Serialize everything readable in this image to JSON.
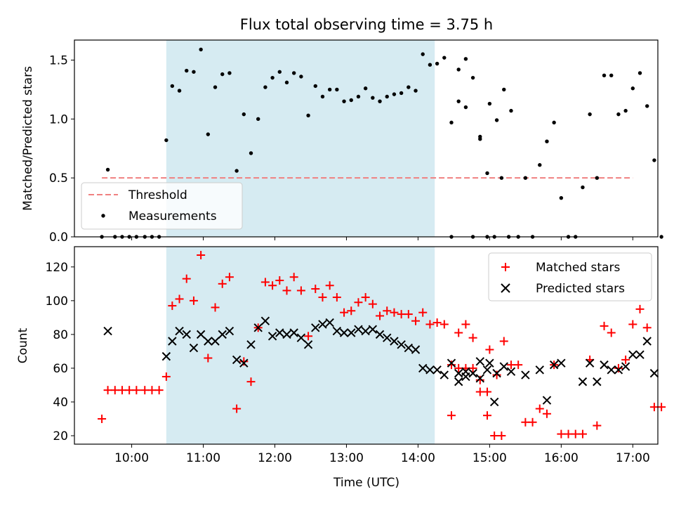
{
  "chart_data": [
    {
      "type": "scatter",
      "title": "Flux total observing time = 3.75 h",
      "xlabel": "",
      "ylabel": "Matched/Predicted stars",
      "xlim": [
        "09:12",
        "17:21"
      ],
      "ylim": [
        0,
        1.67
      ],
      "yticks": [
        0.0,
        0.5,
        1.0,
        1.5
      ],
      "ytick_labels": [
        "0.0",
        "0.5",
        "1.0",
        "1.5"
      ],
      "shaded_span": {
        "start": "10:29",
        "end": "14:14",
        "color": "#add8e6"
      },
      "legend": {
        "position": "lower-left",
        "entries": [
          "Threshold",
          "Measurements"
        ]
      },
      "threshold": {
        "name": "Threshold",
        "value": 0.5,
        "x_start": "09:35",
        "x_end": "17:00",
        "color": "#f08080",
        "style": "dashed"
      },
      "series": [
        {
          "name": "Measurements",
          "color": "#000000",
          "marker": "dot",
          "points": [
            [
              "09:35",
              0.0
            ],
            [
              "09:40",
              0.57
            ],
            [
              "09:46",
              0.0
            ],
            [
              "09:52",
              0.0
            ],
            [
              "09:58",
              0.0
            ],
            [
              "10:04",
              0.0
            ],
            [
              "10:11",
              0.0
            ],
            [
              "10:17",
              0.0
            ],
            [
              "10:23",
              0.0
            ],
            [
              "10:29",
              0.82
            ],
            [
              "10:34",
              1.28
            ],
            [
              "10:40",
              1.24
            ],
            [
              "10:46",
              1.41
            ],
            [
              "10:52",
              1.4
            ],
            [
              "10:58",
              1.59
            ],
            [
              "11:04",
              0.87
            ],
            [
              "11:10",
              1.27
            ],
            [
              "11:16",
              1.38
            ],
            [
              "11:22",
              1.39
            ],
            [
              "11:28",
              0.56
            ],
            [
              "11:34",
              1.04
            ],
            [
              "11:40",
              0.71
            ],
            [
              "11:46",
              1.0
            ],
            [
              "11:52",
              1.27
            ],
            [
              "11:58",
              1.35
            ],
            [
              "12:04",
              1.4
            ],
            [
              "12:10",
              1.31
            ],
            [
              "12:16",
              1.39
            ],
            [
              "12:22",
              1.36
            ],
            [
              "12:28",
              1.03
            ],
            [
              "12:34",
              1.28
            ],
            [
              "12:40",
              1.19
            ],
            [
              "12:46",
              1.25
            ],
            [
              "12:52",
              1.25
            ],
            [
              "12:58",
              1.15
            ],
            [
              "13:04",
              1.16
            ],
            [
              "13:10",
              1.19
            ],
            [
              "13:16",
              1.26
            ],
            [
              "13:22",
              1.18
            ],
            [
              "13:28",
              1.15
            ],
            [
              "13:34",
              1.19
            ],
            [
              "13:40",
              1.21
            ],
            [
              "13:46",
              1.22
            ],
            [
              "13:52",
              1.27
            ],
            [
              "13:58",
              1.24
            ],
            [
              "14:04",
              1.55
            ],
            [
              "14:10",
              1.46
            ],
            [
              "14:16",
              1.47
            ],
            [
              "14:22",
              1.52
            ],
            [
              "14:28",
              0.97
            ],
            [
              "14:34",
              1.42
            ],
            [
              "14:40",
              1.51
            ],
            [
              "14:46",
              1.35
            ],
            [
              "14:52",
              0.83
            ],
            [
              "14:58",
              0.54
            ],
            [
              "14:28",
              0.0
            ],
            [
              "14:34",
              1.15
            ],
            [
              "14:40",
              1.1
            ],
            [
              "14:46",
              0.0
            ],
            [
              "14:52",
              0.85
            ],
            [
              "14:58",
              0.0
            ],
            [
              "15:04",
              0.0
            ],
            [
              "15:10",
              0.5
            ],
            [
              "15:16",
              0.0
            ],
            [
              "15:00",
              1.13
            ],
            [
              "15:06",
              0.99
            ],
            [
              "15:12",
              1.25
            ],
            [
              "15:18",
              1.07
            ],
            [
              "15:24",
              0.0
            ],
            [
              "15:30",
              0.5
            ],
            [
              "15:36",
              0.0
            ],
            [
              "15:42",
              0.61
            ],
            [
              "15:48",
              0.81
            ],
            [
              "15:54",
              0.97
            ],
            [
              "16:00",
              0.33
            ],
            [
              "16:06",
              0.0
            ],
            [
              "16:12",
              0.0
            ],
            [
              "16:18",
              0.42
            ],
            [
              "16:24",
              1.04
            ],
            [
              "16:30",
              0.5
            ],
            [
              "16:36",
              1.37
            ],
            [
              "16:42",
              1.37
            ],
            [
              "16:48",
              1.04
            ],
            [
              "16:54",
              1.07
            ],
            [
              "17:00",
              1.26
            ],
            [
              "17:06",
              1.39
            ],
            [
              "17:12",
              1.11
            ],
            [
              "17:18",
              0.65
            ],
            [
              "17:24",
              0.0
            ]
          ]
        }
      ]
    },
    {
      "type": "scatter",
      "title": "",
      "xlabel": "Time (UTC)",
      "ylabel": "Count",
      "xlim": [
        "09:12",
        "17:21"
      ],
      "ylim": [
        15,
        132
      ],
      "xticks": [
        "10:00",
        "11:00",
        "12:00",
        "13:00",
        "14:00",
        "15:00",
        "16:00",
        "17:00"
      ],
      "yticks": [
        20,
        40,
        60,
        80,
        100,
        120
      ],
      "shaded_span": {
        "start": "10:29",
        "end": "14:14",
        "color": "#add8e6"
      },
      "legend": {
        "position": "top-right",
        "entries": [
          "Matched stars",
          "Predicted stars"
        ]
      },
      "series": [
        {
          "name": "Matched stars",
          "color": "#ff0000",
          "marker": "plus",
          "points": [
            [
              "09:35",
              30
            ],
            [
              "09:40",
              47
            ],
            [
              "09:46",
              47
            ],
            [
              "09:52",
              47
            ],
            [
              "09:58",
              47
            ],
            [
              "10:04",
              47
            ],
            [
              "10:11",
              47
            ],
            [
              "10:17",
              47
            ],
            [
              "10:23",
              47
            ],
            [
              "10:29",
              55
            ],
            [
              "10:34",
              97
            ],
            [
              "10:40",
              101
            ],
            [
              "10:46",
              113
            ],
            [
              "10:52",
              100
            ],
            [
              "10:58",
              127
            ],
            [
              "11:04",
              66
            ],
            [
              "11:10",
              96
            ],
            [
              "11:16",
              110
            ],
            [
              "11:22",
              114
            ],
            [
              "11:28",
              36
            ],
            [
              "11:34",
              64
            ],
            [
              "11:40",
              52
            ],
            [
              "11:46",
              84
            ],
            [
              "11:52",
              111
            ],
            [
              "11:58",
              109
            ],
            [
              "12:04",
              112
            ],
            [
              "12:10",
              106
            ],
            [
              "12:16",
              114
            ],
            [
              "12:22",
              106
            ],
            [
              "12:28",
              79
            ],
            [
              "12:34",
              107
            ],
            [
              "12:40",
              102
            ],
            [
              "12:46",
              109
            ],
            [
              "12:52",
              102
            ],
            [
              "12:58",
              93
            ],
            [
              "13:04",
              94
            ],
            [
              "13:10",
              99
            ],
            [
              "13:16",
              102
            ],
            [
              "13:22",
              98
            ],
            [
              "13:28",
              91
            ],
            [
              "13:34",
              94
            ],
            [
              "13:40",
              93
            ],
            [
              "13:46",
              92
            ],
            [
              "13:52",
              92
            ],
            [
              "13:58",
              88
            ],
            [
              "14:04",
              93
            ],
            [
              "14:10",
              86
            ],
            [
              "14:16",
              87
            ],
            [
              "14:22",
              86
            ],
            [
              "14:28",
              62
            ],
            [
              "14:34",
              81
            ],
            [
              "14:40",
              86
            ],
            [
              "14:46",
              78
            ],
            [
              "14:52",
              53
            ],
            [
              "14:58",
              32
            ],
            [
              "14:28",
              32
            ],
            [
              "14:34",
              60
            ],
            [
              "14:40",
              60
            ],
            [
              "14:46",
              60
            ],
            [
              "14:52",
              46
            ],
            [
              "14:58",
              46
            ],
            [
              "15:04",
              20
            ],
            [
              "15:10",
              20
            ],
            [
              "15:00",
              71
            ],
            [
              "15:06",
              56
            ],
            [
              "15:12",
              76
            ],
            [
              "15:18",
              62
            ],
            [
              "15:24",
              62
            ],
            [
              "15:30",
              28
            ],
            [
              "15:36",
              28
            ],
            [
              "15:42",
              36
            ],
            [
              "15:48",
              33
            ],
            [
              "15:54",
              62
            ],
            [
              "16:00",
              21
            ],
            [
              "16:06",
              21
            ],
            [
              "16:12",
              21
            ],
            [
              "16:18",
              21
            ],
            [
              "16:24",
              65
            ],
            [
              "16:30",
              26
            ],
            [
              "16:36",
              85
            ],
            [
              "16:42",
              81
            ],
            [
              "16:48",
              60
            ],
            [
              "16:54",
              65
            ],
            [
              "17:00",
              86
            ],
            [
              "17:06",
              95
            ],
            [
              "17:12",
              84
            ],
            [
              "17:18",
              37
            ],
            [
              "17:24",
              37
            ]
          ]
        },
        {
          "name": "Predicted stars",
          "color": "#000000",
          "marker": "x",
          "points": [
            [
              "09:40",
              82
            ],
            [
              "10:29",
              67
            ],
            [
              "10:34",
              76
            ],
            [
              "10:40",
              82
            ],
            [
              "10:46",
              80
            ],
            [
              "10:52",
              72
            ],
            [
              "10:58",
              80
            ],
            [
              "11:04",
              76
            ],
            [
              "11:10",
              76
            ],
            [
              "11:16",
              80
            ],
            [
              "11:22",
              82
            ],
            [
              "11:28",
              65
            ],
            [
              "11:34",
              63
            ],
            [
              "11:40",
              74
            ],
            [
              "11:46",
              84
            ],
            [
              "11:52",
              88
            ],
            [
              "11:58",
              79
            ],
            [
              "12:04",
              81
            ],
            [
              "12:10",
              80
            ],
            [
              "12:16",
              81
            ],
            [
              "12:22",
              78
            ],
            [
              "12:28",
              74
            ],
            [
              "12:34",
              84
            ],
            [
              "12:40",
              86
            ],
            [
              "12:46",
              87
            ],
            [
              "12:52",
              82
            ],
            [
              "12:58",
              81
            ],
            [
              "13:04",
              81
            ],
            [
              "13:10",
              83
            ],
            [
              "13:16",
              82
            ],
            [
              "13:22",
              83
            ],
            [
              "13:28",
              80
            ],
            [
              "13:34",
              78
            ],
            [
              "13:40",
              76
            ],
            [
              "13:46",
              74
            ],
            [
              "13:52",
              72
            ],
            [
              "13:58",
              71
            ],
            [
              "14:04",
              60
            ],
            [
              "14:10",
              59
            ],
            [
              "14:16",
              59
            ],
            [
              "14:22",
              56
            ],
            [
              "14:28",
              63
            ],
            [
              "14:34",
              57
            ],
            [
              "14:40",
              58
            ],
            [
              "14:46",
              57
            ],
            [
              "14:52",
              64
            ],
            [
              "14:58",
              59
            ],
            [
              "14:34",
              52
            ],
            [
              "14:40",
              55
            ],
            [
              "14:52",
              54
            ],
            [
              "15:04",
              40
            ],
            [
              "15:00",
              63
            ],
            [
              "15:06",
              57
            ],
            [
              "15:12",
              61
            ],
            [
              "15:18",
              58
            ],
            [
              "15:30",
              56
            ],
            [
              "15:42",
              59
            ],
            [
              "15:48",
              41
            ],
            [
              "15:54",
              62
            ],
            [
              "16:00",
              63
            ],
            [
              "16:18",
              52
            ],
            [
              "16:24",
              63
            ],
            [
              "16:30",
              52
            ],
            [
              "16:36",
              62
            ],
            [
              "16:42",
              59
            ],
            [
              "16:48",
              59
            ],
            [
              "16:54",
              61
            ],
            [
              "17:00",
              68
            ],
            [
              "17:06",
              68
            ],
            [
              "17:12",
              76
            ],
            [
              "17:18",
              57
            ]
          ]
        }
      ]
    }
  ]
}
